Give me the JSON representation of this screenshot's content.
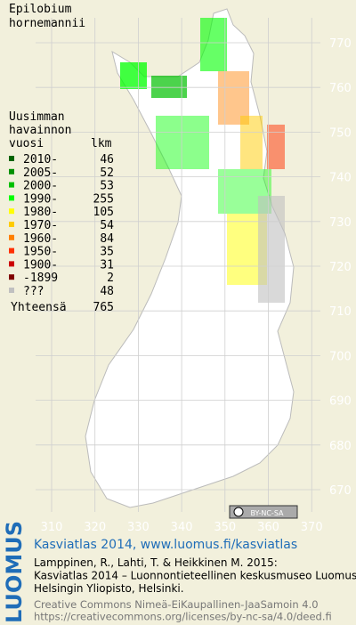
{
  "title": {
    "line1": "Epilobium",
    "line2": "hornemannii"
  },
  "legend": {
    "heading": [
      "Uusimman",
      "havainnon",
      "vuosi"
    ],
    "count_heading": "lkm",
    "items": [
      {
        "label": "2010-",
        "count": 46,
        "color": "#006400"
      },
      {
        "label": "2005-",
        "count": 52,
        "color": "#009000"
      },
      {
        "label": "2000-",
        "count": 53,
        "color": "#00c000"
      },
      {
        "label": "1990-",
        "count": 255,
        "color": "#00ff00"
      },
      {
        "label": "1980-",
        "count": 105,
        "color": "#ffff00"
      },
      {
        "label": "1970-",
        "count": 54,
        "color": "#ffcc00"
      },
      {
        "label": "1960-",
        "count": 84,
        "color": "#ff8000"
      },
      {
        "label": "1950-",
        "count": 35,
        "color": "#ff3000"
      },
      {
        "label": "1900-",
        "count": 31,
        "color": "#cc0000"
      },
      {
        "label": "-1899",
        "count": 2,
        "color": "#800000"
      },
      {
        "label": "???",
        "count": 48,
        "color": "#c0c0c0"
      }
    ],
    "total_label": "Yhteensä",
    "total": 765
  },
  "grid": {
    "y_labels": [
      770,
      760,
      750,
      740,
      730,
      720,
      710,
      700,
      690,
      680,
      670
    ],
    "x_labels": [
      310,
      320,
      330,
      340,
      350,
      360,
      370
    ]
  },
  "badge": "BY-NC-SA",
  "credits": {
    "logo": "LUOMUS",
    "link": "Kasviatlas 2014, www.luomus.fi/kasviatlas",
    "citation": [
      "Lamppinen, R., Lahti, T. & Heikkinen M. 2015:",
      "Kasviatlas 2014 – Luonnontieteellinen keskusmuseo Luomus,",
      "Helsingin Yliopisto, Helsinki."
    ],
    "license": [
      "Creative Commons Nimeä-EiKaupallinen-JaaSamoin 4.0",
      "https://creativecommons.org/licenses/by-nc-sa/4.0/deed.fi"
    ]
  }
}
